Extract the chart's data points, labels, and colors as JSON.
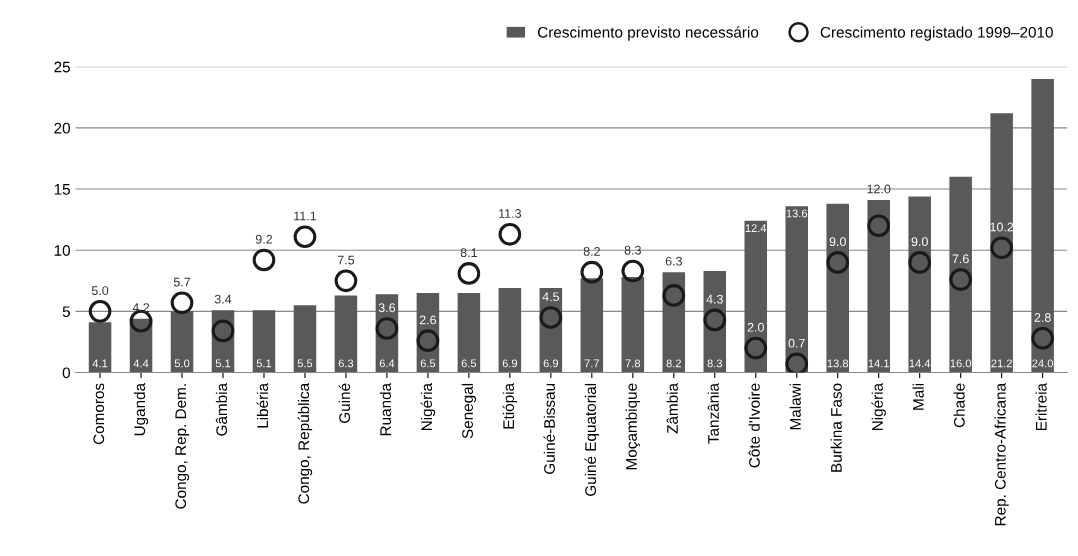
{
  "chart_data": {
    "type": "bar",
    "categories": [
      "Comoros",
      "Uganda",
      "Congo, Rep. Dem.",
      "Gâmbia",
      "Libéria",
      "Congo, República",
      "Guiné",
      "Ruanda",
      "Nigéria",
      "Senegal",
      "Etiópia",
      "Guiné-Bissau",
      "Guiné Equatorial",
      "Moçambique",
      "Zâmbia",
      "Tanzânia",
      "Côte d'Ivoire",
      "Malawi",
      "Burkina Faso",
      "Nigéria",
      "Mali",
      "Chade",
      "Rep. Centro-Africana",
      "Eritreia"
    ],
    "series": [
      {
        "name": "Crescimento previsto necessário",
        "color": "#595959",
        "values": [
          4.1,
          4.4,
          5.0,
          5.1,
          5.1,
          5.5,
          6.3,
          6.4,
          6.5,
          6.5,
          6.9,
          6.9,
          7.7,
          7.8,
          8.2,
          8.3,
          12.4,
          13.6,
          13.8,
          14.1,
          14.4,
          16.0,
          21.2,
          24.0
        ],
        "value_labels": [
          "4.1",
          "4.4",
          "5.0",
          "5.1",
          "5.1",
          "5.5",
          "6.3",
          "6.4",
          "6.5",
          "6.5",
          "6.9",
          "6.9",
          "7.7",
          "7.8",
          "8.2",
          "8.3",
          "12.4",
          "13.6",
          "13.8",
          "14.1",
          "14.4",
          "16.0",
          "21.2",
          "24.0"
        ]
      },
      {
        "name": "Crescimento registado 1999–2010",
        "type": "scatter",
        "color": "#1a1a1a",
        "marker": "circle",
        "values": [
          5.0,
          4.2,
          5.7,
          3.4,
          9.2,
          11.1,
          7.5,
          3.6,
          2.6,
          8.1,
          11.3,
          4.5,
          8.2,
          8.3,
          6.3,
          4.3,
          2.0,
          0.7,
          9.0,
          12.0,
          9.0,
          7.6,
          10.2,
          2.8
        ],
        "value_labels": [
          "5.0",
          "4.2",
          "5.7",
          "3.4",
          "9.2",
          "11.1",
          "7.5",
          "3.6",
          "2.6",
          "8.1",
          "11.3",
          "4.5",
          "8.2",
          "8.3",
          "6.3",
          "4.3",
          "2.0",
          "0.7",
          "9.0",
          "12.0",
          "9.0",
          "7.6",
          "10.2",
          "2.8"
        ]
      }
    ],
    "ylim": [
      0,
      25
    ],
    "yticks": [
      0,
      5,
      10,
      15,
      20,
      25
    ],
    "grid": "y",
    "legend": "top right"
  }
}
